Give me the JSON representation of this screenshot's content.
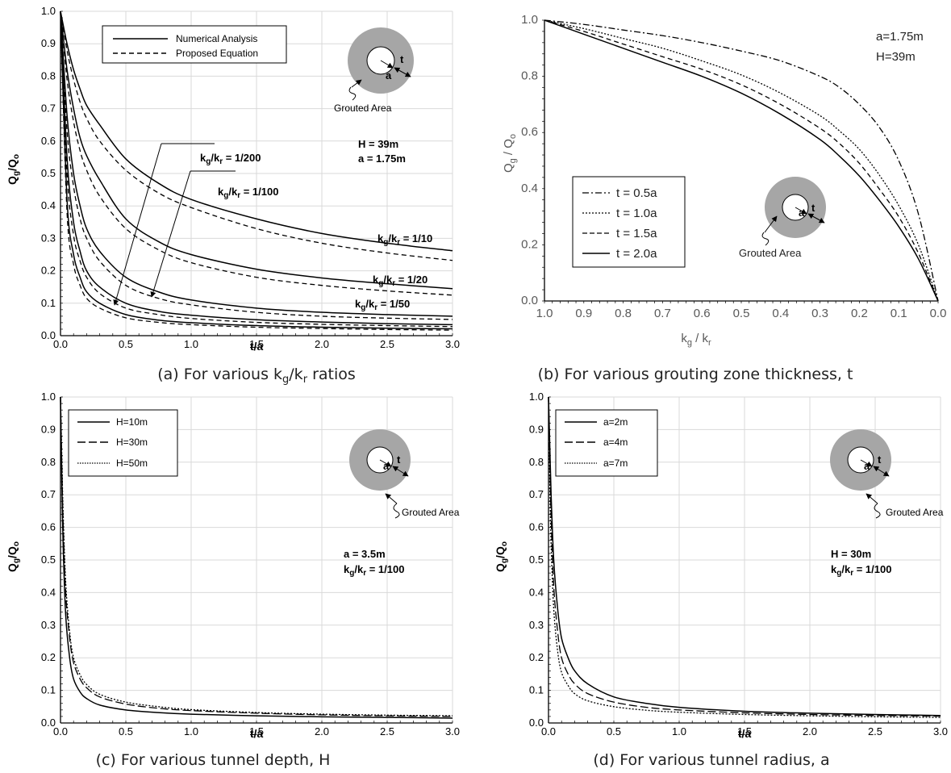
{
  "chart_data": [
    {
      "type": "line",
      "id": "a",
      "caption": "(a) For various kg/kr ratios",
      "xlabel": "t/a",
      "ylabel": "Qg/Qo",
      "xlim": [
        0,
        3
      ],
      "ylim": [
        0,
        1
      ],
      "xticks": [
        "0.0",
        "0.5",
        "1.0",
        "1.5",
        "2.0",
        "2.5",
        "3.0"
      ],
      "yticks": [
        "0.0",
        "0.1",
        "0.2",
        "0.3",
        "0.4",
        "0.5",
        "0.6",
        "0.7",
        "0.8",
        "0.9",
        "1.0"
      ],
      "grid": true,
      "legend": {
        "placement": "top-left",
        "entries": [
          {
            "name": "Numerical Analysis",
            "style": "solid"
          },
          {
            "name": "Proposed Equation",
            "style": "dashed"
          }
        ]
      },
      "annotations": [
        "H = 39m",
        "a = 1.75m",
        "Grouted Area",
        "a",
        "t"
      ],
      "x": [
        0,
        0.05,
        0.1,
        0.15,
        0.2,
        0.3,
        0.5,
        0.75,
        1.0,
        1.5,
        2.0,
        2.5,
        3.0
      ],
      "series": [
        {
          "name": "kg/kr = 1/10",
          "style": "solid",
          "values": [
            1.0,
            0.9,
            0.82,
            0.76,
            0.71,
            0.65,
            0.545,
            0.47,
            0.42,
            0.36,
            0.315,
            0.285,
            0.262
          ]
        },
        {
          "name": "kg/kr = 1/10",
          "style": "dashed",
          "values": [
            1.0,
            0.88,
            0.79,
            0.72,
            0.67,
            0.6,
            0.51,
            0.44,
            0.395,
            0.33,
            0.285,
            0.255,
            0.232
          ]
        },
        {
          "name": "kg/kr = 1/20",
          "style": "solid",
          "values": [
            1.0,
            0.82,
            0.7,
            0.61,
            0.555,
            0.48,
            0.36,
            0.29,
            0.25,
            0.205,
            0.178,
            0.16,
            0.145
          ]
        },
        {
          "name": "kg/kr = 1/20",
          "style": "dashed",
          "values": [
            1.0,
            0.79,
            0.66,
            0.57,
            0.51,
            0.43,
            0.33,
            0.265,
            0.225,
            0.18,
            0.155,
            0.138,
            0.125
          ]
        },
        {
          "name": "kg/kr = 1/50",
          "style": "solid",
          "values": [
            1.0,
            0.68,
            0.5,
            0.4,
            0.33,
            0.26,
            0.18,
            0.135,
            0.11,
            0.085,
            0.072,
            0.065,
            0.06
          ]
        },
        {
          "name": "kg/kr = 1/50",
          "style": "dashed",
          "values": [
            1.0,
            0.63,
            0.46,
            0.36,
            0.3,
            0.23,
            0.155,
            0.115,
            0.095,
            0.072,
            0.06,
            0.054,
            0.05
          ]
        },
        {
          "name": "kg/kr = 1/100",
          "style": "solid",
          "values": [
            1.0,
            0.55,
            0.35,
            0.26,
            0.2,
            0.15,
            0.1,
            0.075,
            0.063,
            0.049,
            0.042,
            0.037,
            0.034
          ]
        },
        {
          "name": "kg/kr = 1/100",
          "style": "dashed",
          "values": [
            1.0,
            0.5,
            0.31,
            0.23,
            0.18,
            0.13,
            0.085,
            0.065,
            0.053,
            0.041,
            0.035,
            0.031,
            0.028
          ]
        },
        {
          "name": "kg/kr = 1/200",
          "style": "solid",
          "values": [
            1.0,
            0.42,
            0.25,
            0.18,
            0.135,
            0.1,
            0.065,
            0.048,
            0.04,
            0.031,
            0.026,
            0.023,
            0.021
          ]
        },
        {
          "name": "kg/kr = 1/200",
          "style": "dashed",
          "values": [
            1.0,
            0.38,
            0.22,
            0.155,
            0.115,
            0.085,
            0.055,
            0.041,
            0.034,
            0.026,
            0.022,
            0.019,
            0.017
          ]
        }
      ],
      "curve_labels": [
        "kg/kr = 1/10",
        "kg/kr = 1/20",
        "kg/kr = 1/50",
        "kg/kr = 1/100",
        "kg/kr = 1/200"
      ]
    },
    {
      "type": "line",
      "id": "b",
      "caption": "(b) For various grouting zone thickness, t",
      "xlabel": "kg / kr",
      "ylabel": "Qg / Qo",
      "xlim": [
        1.0,
        0.0
      ],
      "ylim": [
        0,
        1
      ],
      "xticks": [
        "1.0",
        "0.9",
        "0.8",
        "0.7",
        "0.6",
        "0.5",
        "0.4",
        "0.3",
        "0.2",
        "0.1",
        "0.0"
      ],
      "yticks": [
        "0.0",
        "0.2",
        "0.4",
        "0.6",
        "0.8",
        "1.0"
      ],
      "grid": false,
      "legend": {
        "placement": "bottom-left",
        "entries": [
          {
            "name": "t = 0.5a",
            "style": "dashdot"
          },
          {
            "name": "t = 1.0a",
            "style": "dotted"
          },
          {
            "name": "t = 1.5a",
            "style": "dashed"
          },
          {
            "name": "t = 2.0a",
            "style": "solid"
          }
        ]
      },
      "annotations": [
        "a=1.75m",
        "H=39m",
        "Grouted Area",
        "a",
        "t"
      ],
      "x": [
        1.0,
        0.9,
        0.8,
        0.7,
        0.6,
        0.5,
        0.4,
        0.3,
        0.25,
        0.2,
        0.15,
        0.1,
        0.05,
        0.0
      ],
      "series": [
        {
          "name": "t = 0.5a",
          "style": "dashdot",
          "values": [
            1.0,
            0.985,
            0.965,
            0.945,
            0.92,
            0.89,
            0.855,
            0.8,
            0.76,
            0.7,
            0.62,
            0.5,
            0.31,
            0.0
          ]
        },
        {
          "name": "t = 1.0a",
          "style": "dotted",
          "values": [
            1.0,
            0.97,
            0.935,
            0.9,
            0.855,
            0.805,
            0.74,
            0.66,
            0.605,
            0.54,
            0.45,
            0.34,
            0.2,
            0.0
          ]
        },
        {
          "name": "t = 1.5a",
          "style": "dashed",
          "values": [
            1.0,
            0.96,
            0.915,
            0.87,
            0.825,
            0.77,
            0.7,
            0.615,
            0.56,
            0.49,
            0.4,
            0.3,
            0.17,
            0.0
          ]
        },
        {
          "name": "t = 2.0a",
          "style": "solid",
          "values": [
            1.0,
            0.95,
            0.9,
            0.85,
            0.8,
            0.74,
            0.665,
            0.575,
            0.515,
            0.445,
            0.36,
            0.265,
            0.15,
            0.0
          ]
        }
      ]
    },
    {
      "type": "line",
      "id": "c",
      "caption": "(c) For various tunnel depth, H",
      "xlabel": "t/a",
      "ylabel": "Qg/Qo",
      "xlim": [
        0,
        3
      ],
      "ylim": [
        0,
        1
      ],
      "xticks": [
        "0.0",
        "0.5",
        "1.0",
        "1.5",
        "2.0",
        "2.5",
        "3.0"
      ],
      "yticks": [
        "0.0",
        "0.1",
        "0.2",
        "0.3",
        "0.4",
        "0.5",
        "0.6",
        "0.7",
        "0.8",
        "0.9",
        "1.0"
      ],
      "grid": true,
      "legend": {
        "placement": "top-left",
        "entries": [
          {
            "name": "H=10m",
            "style": "solid"
          },
          {
            "name": "H=30m",
            "style": "longdash"
          },
          {
            "name": "H=50m",
            "style": "dotted"
          }
        ]
      },
      "annotations": [
        "a = 3.5m",
        "kg/kr = 1/100",
        "Grouted Area",
        "a",
        "t"
      ],
      "x": [
        0,
        0.01,
        0.02,
        0.04,
        0.07,
        0.1,
        0.15,
        0.2,
        0.3,
        0.5,
        0.75,
        1.0,
        1.5,
        2.0,
        2.5,
        3.0
      ],
      "series": [
        {
          "name": "H=10m",
          "style": "solid",
          "values": [
            1.0,
            0.75,
            0.55,
            0.33,
            0.2,
            0.135,
            0.095,
            0.075,
            0.055,
            0.04,
            0.032,
            0.027,
            0.022,
            0.019,
            0.017,
            0.015
          ]
        },
        {
          "name": "H=30m",
          "style": "longdash",
          "values": [
            1.0,
            0.8,
            0.62,
            0.4,
            0.26,
            0.185,
            0.135,
            0.108,
            0.08,
            0.058,
            0.045,
            0.038,
            0.03,
            0.025,
            0.022,
            0.02
          ]
        },
        {
          "name": "H=50m",
          "style": "dotted",
          "values": [
            1.0,
            0.82,
            0.65,
            0.43,
            0.28,
            0.2,
            0.148,
            0.118,
            0.088,
            0.064,
            0.05,
            0.041,
            0.032,
            0.027,
            0.024,
            0.022
          ]
        }
      ]
    },
    {
      "type": "line",
      "id": "d",
      "caption": "(d) For various tunnel radius, a",
      "xlabel": "t/a",
      "ylabel": "Qg/Qo",
      "xlim": [
        0,
        3
      ],
      "ylim": [
        0,
        1
      ],
      "xticks": [
        "0.0",
        "0.5",
        "1.0",
        "1.5",
        "2.0",
        "2.5",
        "3.0"
      ],
      "yticks": [
        "0.0",
        "0.1",
        "0.2",
        "0.3",
        "0.4",
        "0.5",
        "0.6",
        "0.7",
        "0.8",
        "0.9",
        "1.0"
      ],
      "grid": true,
      "legend": {
        "placement": "top-left",
        "entries": [
          {
            "name": "a=2m",
            "style": "solid"
          },
          {
            "name": "a=4m",
            "style": "longdash"
          },
          {
            "name": "a=7m",
            "style": "dotted"
          }
        ]
      },
      "annotations": [
        "H = 30m",
        "kg/kr = 1/100",
        "Grouted Area",
        "a",
        "t"
      ],
      "x": [
        0,
        0.01,
        0.02,
        0.04,
        0.07,
        0.1,
        0.15,
        0.2,
        0.3,
        0.5,
        0.75,
        1.0,
        1.5,
        2.0,
        2.5,
        3.0
      ],
      "series": [
        {
          "name": "a=2m",
          "style": "solid",
          "values": [
            1.0,
            0.85,
            0.7,
            0.5,
            0.35,
            0.26,
            0.2,
            0.16,
            0.12,
            0.08,
            0.06,
            0.048,
            0.036,
            0.03,
            0.026,
            0.023
          ]
        },
        {
          "name": "a=4m",
          "style": "longdash",
          "values": [
            1.0,
            0.8,
            0.63,
            0.42,
            0.28,
            0.2,
            0.15,
            0.12,
            0.09,
            0.064,
            0.048,
            0.04,
            0.031,
            0.026,
            0.023,
            0.021
          ]
        },
        {
          "name": "a=7m",
          "style": "dotted",
          "values": [
            1.0,
            0.74,
            0.55,
            0.35,
            0.22,
            0.155,
            0.115,
            0.09,
            0.068,
            0.05,
            0.039,
            0.033,
            0.026,
            0.022,
            0.019,
            0.017
          ]
        }
      ]
    }
  ]
}
